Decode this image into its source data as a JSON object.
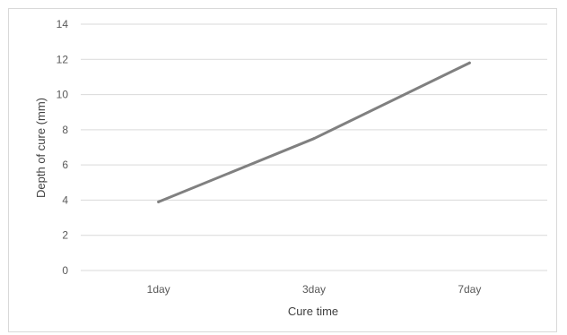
{
  "chart_data": {
    "type": "line",
    "categories": [
      "1day",
      "3day",
      "7day"
    ],
    "series": [
      {
        "values": [
          3.9,
          7.5,
          11.8
        ],
        "color": "#808080"
      }
    ],
    "title": "",
    "xlabel": "Cure time",
    "ylabel": "Depth of cure (mm)",
    "ylim": [
      0,
      14
    ],
    "yticks": [
      0,
      2,
      4,
      6,
      8,
      10,
      12,
      14
    ],
    "grid": true,
    "legend": "none"
  }
}
